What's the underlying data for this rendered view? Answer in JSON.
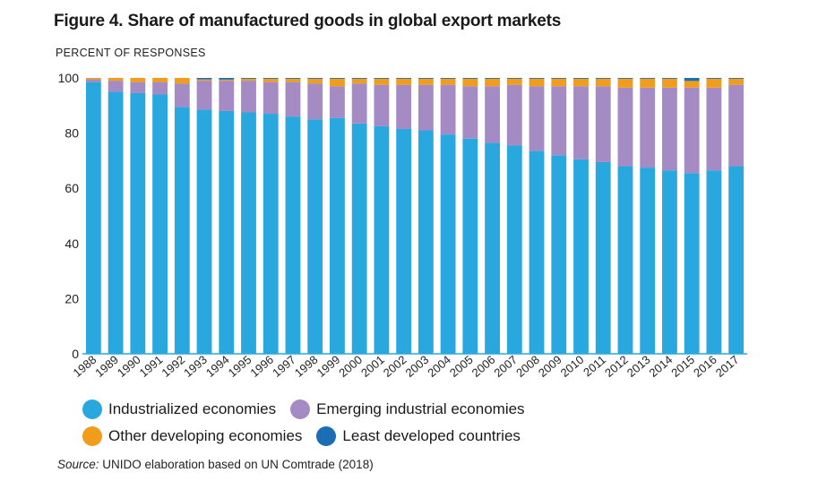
{
  "title": "Figure 4. Share of manufactured goods in global export markets",
  "source": {
    "label": "Source:",
    "text": "UNIDO elaboration based on UN Comtrade (2018)"
  },
  "colors": {
    "industrialized": "#29a8e0",
    "emerging": "#a58bc4",
    "other": "#f29c1b",
    "least": "#1c6eb4"
  },
  "legend": [
    {
      "key": "industrialized",
      "label": "Industrialized economies"
    },
    {
      "key": "emerging",
      "label": "Emerging industrial economies"
    },
    {
      "key": "other",
      "label": "Other developing economies"
    },
    {
      "key": "least",
      "label": "Least developed countries"
    }
  ],
  "chart_data": {
    "type": "bar",
    "stacked": true,
    "title": "Figure 4. Share of manufactured goods in global export markets",
    "ylabel": "PERCENT OF RESPONSES",
    "xlabel": "",
    "ylim": [
      0,
      100
    ],
    "yticks": [
      0,
      20,
      40,
      60,
      80,
      100
    ],
    "grid": false,
    "legend_position": "bottom",
    "categories": [
      "1988",
      "1989",
      "1990",
      "1991",
      "1992",
      "1993",
      "1994",
      "1995",
      "1996",
      "1997",
      "1998",
      "1999",
      "2000",
      "2001",
      "2002",
      "2003",
      "2004",
      "2005",
      "2006",
      "2007",
      "2008",
      "2009",
      "2010",
      "2011",
      "2012",
      "2013",
      "2014",
      "2015",
      "2016",
      "2017"
    ],
    "series": [
      {
        "name": "Industrialized economies",
        "key": "industrialized",
        "values": [
          98.5,
          95.0,
          94.5,
          94.0,
          89.5,
          88.5,
          88.0,
          87.5,
          87.0,
          86.0,
          85.0,
          85.5,
          83.5,
          82.5,
          81.5,
          81.0,
          79.5,
          78.0,
          76.5,
          75.5,
          73.5,
          72.0,
          70.5,
          69.5,
          68.0,
          67.5,
          66.5,
          65.5,
          66.5,
          68.0
        ]
      },
      {
        "name": "Emerging industrial economies",
        "key": "emerging",
        "values": [
          1.0,
          4.0,
          4.0,
          4.5,
          8.5,
          10.5,
          11.0,
          11.5,
          11.5,
          12.5,
          13.0,
          11.5,
          14.5,
          15.0,
          16.0,
          16.5,
          18.0,
          19.0,
          20.5,
          22.0,
          23.5,
          25.0,
          26.5,
          27.5,
          28.5,
          29.0,
          30.0,
          31.0,
          30.0,
          29.5
        ]
      },
      {
        "name": "Other developing economies",
        "key": "other",
        "values": [
          0.5,
          1.0,
          1.5,
          1.5,
          2.0,
          0.5,
          0.4,
          0.7,
          1.2,
          1.2,
          1.7,
          2.7,
          1.7,
          2.2,
          2.2,
          2.2,
          2.2,
          2.7,
          2.7,
          2.2,
          2.7,
          2.7,
          2.7,
          2.7,
          3.2,
          3.2,
          3.2,
          2.4,
          3.2,
          2.2
        ]
      },
      {
        "name": "Least developed countries",
        "key": "least",
        "values": [
          0.0,
          0.0,
          0.0,
          0.0,
          0.0,
          0.5,
          0.6,
          0.3,
          0.3,
          0.3,
          0.3,
          0.3,
          0.3,
          0.3,
          0.3,
          0.3,
          0.3,
          0.3,
          0.3,
          0.3,
          0.3,
          0.3,
          0.3,
          0.3,
          0.3,
          0.3,
          0.3,
          1.1,
          0.3,
          0.3
        ]
      }
    ]
  }
}
